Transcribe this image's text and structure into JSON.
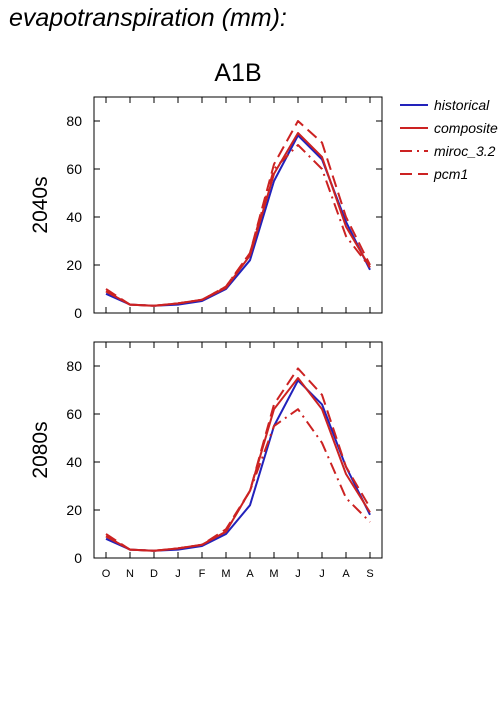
{
  "title": "evapotranspiration (mm):",
  "chart_data": {
    "type": "line",
    "scenario": "A1B",
    "categories": [
      "O",
      "N",
      "D",
      "J",
      "F",
      "M",
      "A",
      "M",
      "J",
      "J",
      "A",
      "S"
    ],
    "ylim": [
      0,
      90
    ],
    "yticks": [
      0,
      20,
      40,
      60,
      80
    ],
    "legend": {
      "placement": "right",
      "entries": [
        "historical",
        "composite",
        "miroc_3.2",
        "pcm1"
      ]
    },
    "colors": {
      "historical": "#2222bb",
      "composite": "#cc2222",
      "miroc_3.2": "#cc2222",
      "pcm1": "#cc2222"
    },
    "panels": [
      {
        "label": "2040s",
        "series": [
          {
            "name": "historical",
            "style": "solid",
            "values": [
              8,
              3.5,
              3,
              3.5,
              5,
              10,
              22,
              55,
              74,
              64,
              38,
              18
            ]
          },
          {
            "name": "composite",
            "style": "solid",
            "values": [
              9,
              3.5,
              3,
              4,
              5.5,
              10.5,
              24,
              58,
              75,
              65,
              36,
              19
            ]
          },
          {
            "name": "miroc_3.2",
            "style": "dashdot",
            "values": [
              9,
              3.5,
              3,
              4,
              5.5,
              11,
              25,
              60,
              70,
              60,
              32,
              19
            ]
          },
          {
            "name": "pcm1",
            "style": "dashed",
            "values": [
              10,
              3.5,
              3,
              4,
              5.5,
              11,
              25,
              62,
              80,
              71,
              40,
              20
            ]
          }
        ]
      },
      {
        "label": "2080s",
        "series": [
          {
            "name": "historical",
            "style": "solid",
            "values": [
              8,
              3.5,
              3,
              3.5,
              5,
              10,
              22,
              55,
              74,
              64,
              38,
              18
            ]
          },
          {
            "name": "composite",
            "style": "solid",
            "values": [
              9,
              3.5,
              3,
              4,
              5.5,
              11,
              28,
              62,
              75,
              62,
              35,
              19
            ]
          },
          {
            "name": "miroc_3.2",
            "style": "dashdot",
            "values": [
              9,
              3.5,
              3,
              4,
              5.5,
              11,
              28,
              55,
              62,
              48,
              25,
              15
            ]
          },
          {
            "name": "pcm1",
            "style": "dashed",
            "values": [
              10,
              3.5,
              3,
              4,
              5.5,
              12,
              28,
              64,
              79,
              68,
              38,
              21
            ]
          }
        ]
      }
    ]
  }
}
